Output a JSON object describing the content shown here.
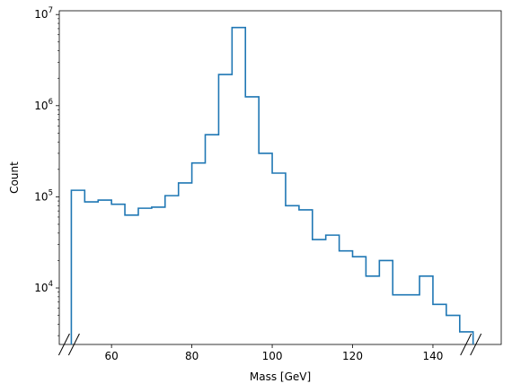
{
  "chart_data": {
    "type": "histogram",
    "xlabel": "Mass [GeV]",
    "ylabel": "Count",
    "xlim": [
      47,
      157
    ],
    "ylim": [
      2400,
      11000000
    ],
    "yscale": "log",
    "x_ticks": [
      60,
      80,
      100,
      120,
      140
    ],
    "x_tick_labels": [
      "60",
      "80",
      "100",
      "120",
      "140"
    ],
    "y_ticks": [
      10000,
      100000,
      1000000,
      10000000
    ],
    "y_tick_labels": [
      {
        "base": "10",
        "exp": "4"
      },
      {
        "base": "10",
        "exp": "5"
      },
      {
        "base": "10",
        "exp": "6"
      },
      {
        "base": "10",
        "exp": "7"
      }
    ],
    "axis_breaks": [
      50,
      150
    ],
    "bin_edges": [
      50,
      53.33,
      56.67,
      60,
      63.33,
      66.67,
      70,
      73.33,
      76.67,
      80,
      83.33,
      86.67,
      90,
      93.33,
      96.67,
      100,
      103.33,
      106.67,
      110,
      113.33,
      116.67,
      120,
      123.33,
      126.67,
      130,
      133.33,
      136.67,
      140,
      143.33,
      146.67,
      150
    ],
    "counts": [
      118000,
      88000,
      92000,
      83000,
      63000,
      75000,
      77000,
      103000,
      142000,
      235000,
      480000,
      2200000,
      7200000,
      1250000,
      300000,
      182000,
      80000,
      72000,
      34000,
      38000,
      25500,
      22000,
      13500,
      20000,
      8400,
      8400,
      13500,
      6600,
      5000,
      3300
    ],
    "line_color": "#1f77b4"
  }
}
